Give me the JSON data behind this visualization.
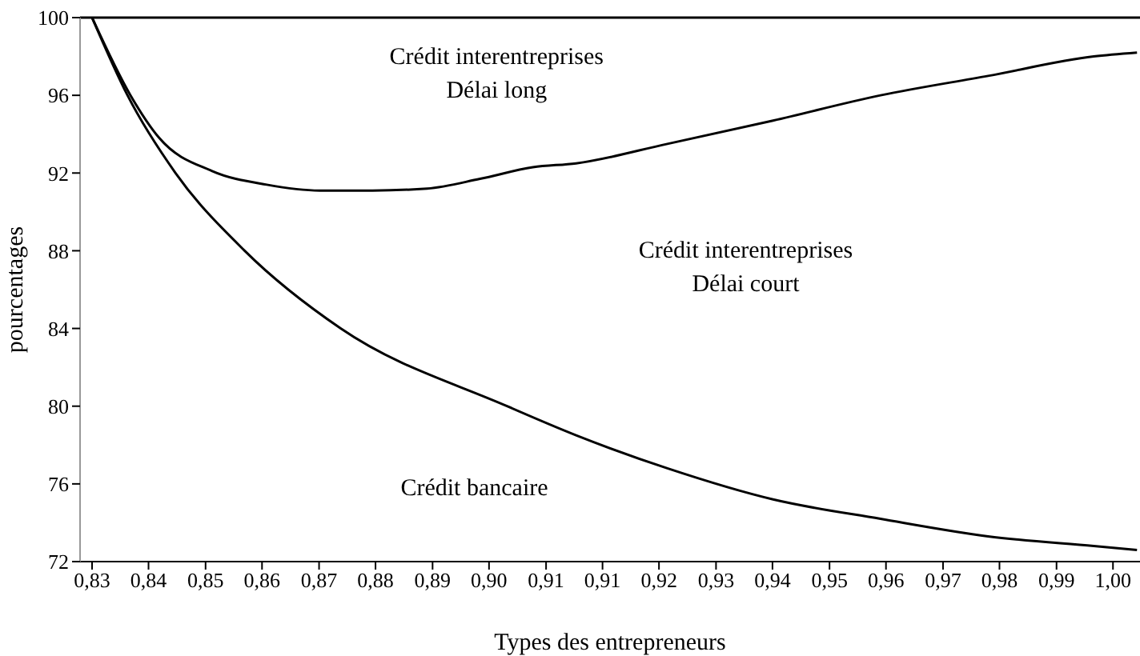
{
  "chart_data": {
    "type": "line",
    "xlabel": "Types des entrepreneurs",
    "ylabel": "pourcentages",
    "xlim": [
      0.828,
      1.0045
    ],
    "ylim": [
      72,
      100
    ],
    "yticks": [
      72,
      76,
      80,
      84,
      88,
      92,
      96,
      100
    ],
    "xticks": [
      {
        "value": 0.83,
        "label": "0,83"
      },
      {
        "value": 0.8394,
        "label": "0,84"
      },
      {
        "value": 0.8489,
        "label": "0,85"
      },
      {
        "value": 0.8583,
        "label": "0,86"
      },
      {
        "value": 0.8678,
        "label": "0,87"
      },
      {
        "value": 0.8772,
        "label": "0,88"
      },
      {
        "value": 0.8867,
        "label": "0,89"
      },
      {
        "value": 0.8961,
        "label": "0,90"
      },
      {
        "value": 0.9056,
        "label": "0,91"
      },
      {
        "value": 0.915,
        "label": "0,91"
      },
      {
        "value": 0.9244,
        "label": "0,92"
      },
      {
        "value": 0.9339,
        "label": "0,93"
      },
      {
        "value": 0.9433,
        "label": "0,94"
      },
      {
        "value": 0.9528,
        "label": "0,95"
      },
      {
        "value": 0.9622,
        "label": "0,96"
      },
      {
        "value": 0.9717,
        "label": "0,97"
      },
      {
        "value": 0.9811,
        "label": "0,98"
      },
      {
        "value": 0.9906,
        "label": "0,99"
      },
      {
        "value": 1.0,
        "label": "1,00"
      }
    ],
    "marker": "none",
    "line_style": "solid",
    "series": [
      {
        "color": "#000000",
        "x": [
          0.83,
          0.8364,
          0.8412,
          0.85,
          0.8591,
          0.8679,
          0.8767,
          0.8858,
          0.8946,
          0.9034,
          0.9106,
          0.9258,
          0.9434,
          0.9613,
          0.9792,
          0.9968,
          1.004
        ],
        "values": [
          100,
          96,
          93.8,
          92.1,
          91.4,
          91.1,
          91.1,
          91.2,
          91.7,
          92.3,
          92.5,
          93.5,
          94.7,
          96,
          97,
          98,
          98.2
        ]
      },
      {
        "color": "#000000",
        "x": [
          0.83,
          0.8359,
          0.8439,
          0.8554,
          0.8714,
          0.8991,
          0.9106,
          0.9258,
          0.9434,
          0.9613,
          0.9792,
          0.9968,
          1.004
        ],
        "values": [
          100,
          96,
          92,
          88,
          84,
          80,
          78.5,
          76.8,
          75.2,
          74.2,
          73.3,
          72.8,
          72.6
        ]
      }
    ],
    "ref_lines": [
      {
        "axis": "y",
        "value": 100,
        "color": "#000000"
      }
    ],
    "annotations": [
      "Crédit interentreprises\nDélai long",
      "Crédit interentreprises\nDélai court",
      "Crédit bancaire"
    ]
  }
}
